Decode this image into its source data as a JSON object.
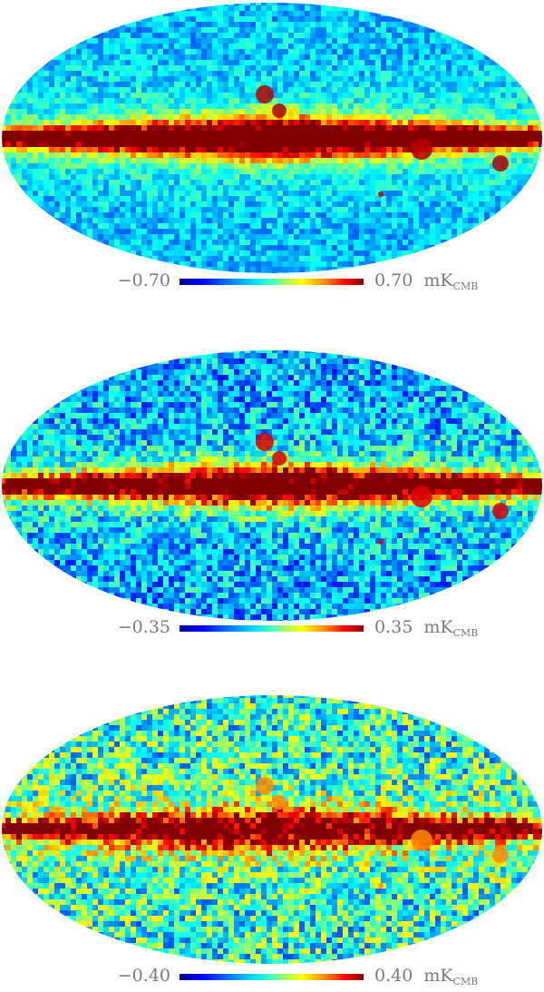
{
  "maps": [
    {
      "id": "map-1",
      "scale_min": "−0.70",
      "scale_max": "0.70",
      "unit": "mK",
      "unit_subscript": "CMB",
      "background_level": 0.32,
      "noise_level": 0.1,
      "plane_strength": 1.0
    },
    {
      "id": "map-2",
      "scale_min": "−0.35",
      "scale_max": "0.35",
      "unit": "mK",
      "unit_subscript": "CMB",
      "background_level": 0.3,
      "noise_level": 0.16,
      "plane_strength": 0.95
    },
    {
      "id": "map-3",
      "scale_min": "−0.40",
      "scale_max": "0.40",
      "unit": "mK",
      "unit_subscript": "CMB",
      "background_level": 0.42,
      "noise_level": 0.22,
      "plane_strength": 0.75
    }
  ]
}
